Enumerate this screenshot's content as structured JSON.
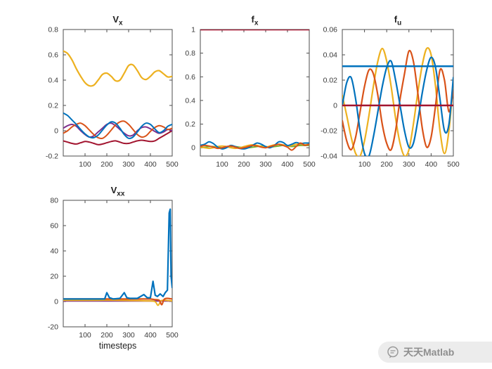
{
  "watermark": {
    "label": "天天Matlab",
    "icon": "chat-bubble-icon"
  },
  "chart_data": [
    {
      "type": "line",
      "title_main": "V",
      "title_sub": "x",
      "xlim": [
        0,
        500
      ],
      "ylim": [
        -0.2,
        0.8
      ],
      "xticks": [
        100,
        200,
        300,
        400,
        500
      ],
      "yticks": [
        -0.2,
        0,
        0.2,
        0.4,
        0.6,
        0.8
      ],
      "x": [
        0,
        20,
        40,
        60,
        80,
        100,
        120,
        140,
        160,
        180,
        200,
        220,
        240,
        260,
        280,
        300,
        320,
        340,
        360,
        380,
        400,
        420,
        440,
        460,
        480,
        500
      ],
      "series": [
        {
          "name": "dark-red",
          "color": "#A2142F",
          "width": 2,
          "smooth": true,
          "y": [
            -0.08,
            -0.09,
            -0.1,
            -0.105,
            -0.095,
            -0.085,
            -0.09,
            -0.1,
            -0.11,
            -0.105,
            -0.095,
            -0.085,
            -0.08,
            -0.09,
            -0.1,
            -0.1,
            -0.09,
            -0.08,
            -0.075,
            -0.08,
            -0.085,
            -0.08,
            -0.06,
            -0.04,
            -0.02,
            0.0
          ]
        },
        {
          "name": "purple",
          "color": "#7E2F8E",
          "width": 2,
          "smooth": true,
          "y": [
            0.02,
            0.04,
            0.05,
            0.035,
            0.0,
            -0.03,
            -0.05,
            -0.04,
            -0.01,
            0.02,
            0.05,
            0.06,
            0.04,
            0.01,
            -0.02,
            -0.04,
            -0.035,
            0.0,
            0.025,
            0.03,
            0.015,
            -0.005,
            -0.02,
            -0.01,
            0.01,
            0.0
          ]
        },
        {
          "name": "orange",
          "color": "#D95319",
          "width": 2,
          "smooth": true,
          "y": [
            -0.02,
            0.0,
            0.03,
            0.05,
            0.06,
            0.04,
            0.005,
            -0.03,
            -0.055,
            -0.06,
            -0.035,
            0.005,
            0.045,
            0.07,
            0.075,
            0.05,
            0.01,
            -0.03,
            -0.05,
            -0.04,
            -0.005,
            0.025,
            0.04,
            0.03,
            0.01,
            0.02
          ]
        },
        {
          "name": "blue",
          "color": "#0072BD",
          "width": 2,
          "smooth": true,
          "y": [
            0.14,
            0.12,
            0.085,
            0.05,
            0.01,
            -0.025,
            -0.05,
            -0.055,
            -0.035,
            0.005,
            0.045,
            0.07,
            0.06,
            0.02,
            -0.03,
            -0.06,
            -0.05,
            -0.01,
            0.035,
            0.06,
            0.05,
            0.015,
            -0.015,
            0.0,
            0.035,
            0.05
          ]
        },
        {
          "name": "yellow",
          "color": "#EDB120",
          "width": 2.2,
          "smooth": true,
          "y": [
            0.63,
            0.61,
            0.56,
            0.49,
            0.43,
            0.38,
            0.355,
            0.36,
            0.4,
            0.445,
            0.455,
            0.43,
            0.395,
            0.4,
            0.455,
            0.515,
            0.52,
            0.475,
            0.42,
            0.405,
            0.43,
            0.465,
            0.475,
            0.45,
            0.425,
            0.43
          ]
        }
      ]
    },
    {
      "type": "line",
      "title_main": "f",
      "title_sub": "x",
      "xlim": [
        0,
        500
      ],
      "ylim": [
        -0.07,
        1.0
      ],
      "xticks": [
        100,
        200,
        300,
        400,
        500
      ],
      "yticks": [
        0,
        0.2,
        0.4,
        0.6,
        0.8,
        1
      ],
      "x": [
        0,
        20,
        40,
        60,
        80,
        100,
        120,
        140,
        160,
        180,
        200,
        220,
        240,
        260,
        280,
        300,
        320,
        340,
        360,
        380,
        400,
        420,
        440,
        460,
        480,
        500
      ],
      "series": [
        {
          "name": "green",
          "color": "#77AC30",
          "width": 2,
          "smooth": true,
          "y": [
            0.0,
            0.005,
            0.01,
            0.01,
            0.005,
            0.0,
            0.005,
            0.01,
            0.01,
            0.005,
            0.0,
            0.0,
            0.005,
            0.01,
            0.015,
            0.01,
            0.005,
            0.01,
            0.015,
            0.02,
            0.015,
            0.01,
            0.015,
            0.02,
            0.02,
            0.02
          ]
        },
        {
          "name": "yellow",
          "color": "#EDB120",
          "width": 2,
          "smooth": true,
          "y": [
            0.005,
            0.0,
            -0.005,
            0.0,
            0.01,
            0.015,
            0.01,
            0.0,
            -0.005,
            0.0,
            0.01,
            0.02,
            0.025,
            0.02,
            0.01,
            0.005,
            0.015,
            0.025,
            0.03,
            0.025,
            0.015,
            0.02,
            0.03,
            0.03,
            0.025,
            0.03
          ]
        },
        {
          "name": "blue",
          "color": "#0072BD",
          "width": 2,
          "smooth": true,
          "y": [
            0.02,
            0.03,
            0.05,
            0.035,
            0.005,
            -0.01,
            0.0,
            0.02,
            0.01,
            -0.005,
            -0.01,
            0.0,
            0.02,
            0.04,
            0.03,
            0.01,
            0.0,
            0.02,
            0.05,
            0.045,
            0.02,
            0.03,
            0.045,
            0.035,
            0.04,
            0.04
          ]
        },
        {
          "name": "orange",
          "color": "#D95319",
          "width": 2,
          "smooth": true,
          "y": [
            0.01,
            0.02,
            0.015,
            0.005,
            -0.005,
            0.0,
            0.01,
            0.015,
            0.005,
            -0.005,
            0.0,
            0.01,
            0.02,
            0.015,
            0.005,
            0.0,
            0.01,
            0.02,
            0.03,
            0.02,
            0.005,
            -0.02,
            0.01,
            0.04,
            0.02,
            0.03
          ]
        },
        {
          "name": "dark-red-constant-1",
          "color": "#A2142F",
          "width": 2.5,
          "smooth": false,
          "x": [
            0,
            500
          ],
          "y": [
            1,
            1
          ]
        }
      ]
    },
    {
      "type": "line",
      "title_main": "f",
      "title_sub": "u",
      "xlim": [
        0,
        500
      ],
      "ylim": [
        -0.04,
        0.06
      ],
      "xticks": [
        100,
        200,
        300,
        400,
        500
      ],
      "yticks": [
        -0.04,
        -0.02,
        0,
        0.02,
        0.04,
        0.06
      ],
      "x": [
        0,
        20,
        40,
        60,
        80,
        100,
        120,
        140,
        160,
        180,
        200,
        220,
        240,
        260,
        280,
        300,
        320,
        340,
        360,
        380,
        400,
        420,
        440,
        460,
        480,
        500
      ],
      "series": [
        {
          "name": "yellow",
          "color": "#EDB120",
          "width": 2.2,
          "smooth": true,
          "y": [
            0.008,
            -0.008,
            -0.025,
            -0.038,
            -0.04,
            -0.028,
            -0.008,
            0.015,
            0.035,
            0.045,
            0.035,
            0.015,
            -0.01,
            -0.03,
            -0.04,
            -0.035,
            -0.015,
            0.01,
            0.032,
            0.045,
            0.04,
            0.015,
            -0.02,
            -0.038,
            -0.02,
            0.018
          ]
        },
        {
          "name": "orange",
          "color": "#D95319",
          "width": 2.2,
          "smooth": true,
          "y": [
            -0.012,
            -0.028,
            -0.035,
            -0.025,
            -0.005,
            0.015,
            0.028,
            0.025,
            0.008,
            -0.015,
            -0.03,
            -0.035,
            -0.02,
            0.005,
            0.025,
            0.043,
            0.035,
            0.01,
            -0.018,
            -0.033,
            -0.025,
            0.0,
            0.028,
            0.02,
            -0.005,
            0.012
          ]
        },
        {
          "name": "blue",
          "color": "#0072BD",
          "width": 2.2,
          "smooth": true,
          "y": [
            0.0,
            0.018,
            0.022,
            0.005,
            -0.02,
            -0.038,
            -0.04,
            -0.025,
            -0.005,
            0.015,
            0.03,
            0.035,
            0.02,
            0.0,
            -0.02,
            -0.033,
            -0.03,
            -0.012,
            0.01,
            0.028,
            0.038,
            0.03,
            0.005,
            -0.02,
            -0.015,
            0.022
          ]
        },
        {
          "name": "blue-constant",
          "color": "#0072BD",
          "width": 2.5,
          "smooth": false,
          "x": [
            0,
            500
          ],
          "y": [
            0.031,
            0.031
          ]
        },
        {
          "name": "dark-red-constant-0",
          "color": "#A2142F",
          "width": 2.5,
          "smooth": false,
          "x": [
            0,
            500
          ],
          "y": [
            0,
            0
          ]
        }
      ]
    },
    {
      "type": "line",
      "title_main": "V",
      "title_sub": "xx",
      "xlabel": "timesteps",
      "xlim": [
        0,
        500
      ],
      "ylim": [
        -20,
        80
      ],
      "xticks": [
        100,
        200,
        300,
        400,
        500
      ],
      "yticks": [
        -20,
        0,
        20,
        40,
        60,
        80
      ],
      "series": [
        {
          "name": "purple",
          "color": "#7E2F8E",
          "width": 2,
          "smooth": false,
          "x": [
            0,
            100,
            200,
            300,
            400,
            500
          ],
          "y": [
            0.4,
            0.4,
            0.4,
            0.4,
            0.4,
            0.4
          ]
        },
        {
          "name": "tan",
          "color": "#EDB120",
          "width": 2,
          "smooth": true,
          "x": [
            0,
            80,
            160,
            240,
            320,
            380,
            420,
            435,
            448,
            460,
            480,
            500
          ],
          "y": [
            1,
            1,
            1,
            1,
            0.8,
            0.5,
            0,
            -3,
            0.5,
            1,
            0.8,
            0.5
          ]
        },
        {
          "name": "orange",
          "color": "#D95319",
          "width": 2.2,
          "smooth": true,
          "x": [
            0,
            60,
            120,
            180,
            240,
            300,
            360,
            400,
            420,
            440,
            452,
            462,
            475,
            500
          ],
          "y": [
            2,
            2,
            2,
            2,
            2,
            2,
            2,
            2,
            1.5,
            1,
            -2.5,
            1.5,
            2.5,
            2
          ]
        },
        {
          "name": "blue",
          "color": "#0072BD",
          "width": 2.2,
          "smooth": false,
          "x": [
            0,
            40,
            80,
            120,
            160,
            190,
            200,
            212,
            230,
            260,
            280,
            292,
            305,
            340,
            370,
            385,
            400,
            412,
            422,
            432,
            445,
            458,
            468,
            478,
            486,
            491,
            495,
            500
          ],
          "y": [
            2,
            2,
            2,
            2,
            2,
            2,
            7,
            3,
            2,
            2.5,
            7,
            3,
            2.5,
            2.5,
            5.5,
            3,
            3,
            16,
            5,
            4,
            6,
            4,
            7,
            9,
            70,
            73,
            20,
            11
          ]
        }
      ]
    }
  ]
}
